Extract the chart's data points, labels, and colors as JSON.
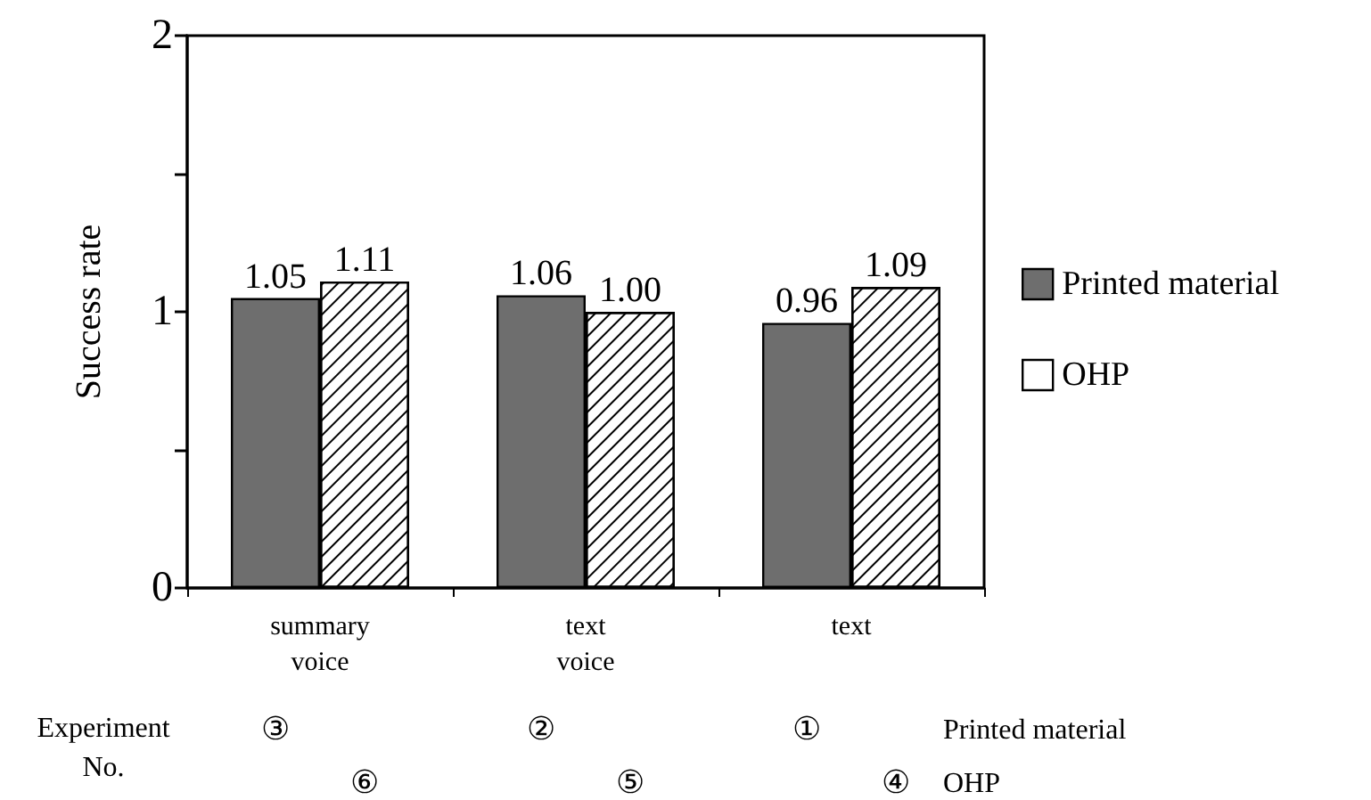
{
  "chart_data": {
    "type": "bar",
    "ylabel": "Success rate",
    "categories": [
      "summary\nvoice",
      "text\nvoice",
      "text"
    ],
    "series": [
      {
        "name": "Printed material",
        "color": "#6e6e6e",
        "values": [
          1.05,
          1.06,
          0.96
        ],
        "value_labels": [
          "1.05",
          "1.06",
          "0.96"
        ]
      },
      {
        "name": "OHP",
        "color": "#ffffff",
        "values": [
          1.11,
          1.0,
          1.09
        ],
        "value_labels": [
          "1.11",
          "1.00",
          "1.09"
        ]
      }
    ],
    "ylim": [
      0,
      2
    ],
    "yticks": [
      0,
      {
        "value": 0.5,
        "label": null
      },
      1,
      {
        "value": 1.5,
        "label": null
      },
      2
    ],
    "legend": "right",
    "grid": false,
    "annotations": [
      "Experiment\nNo.",
      "③",
      "⑥",
      "②",
      "⑤",
      "①",
      "④",
      "Printed material",
      "OHP"
    ]
  }
}
